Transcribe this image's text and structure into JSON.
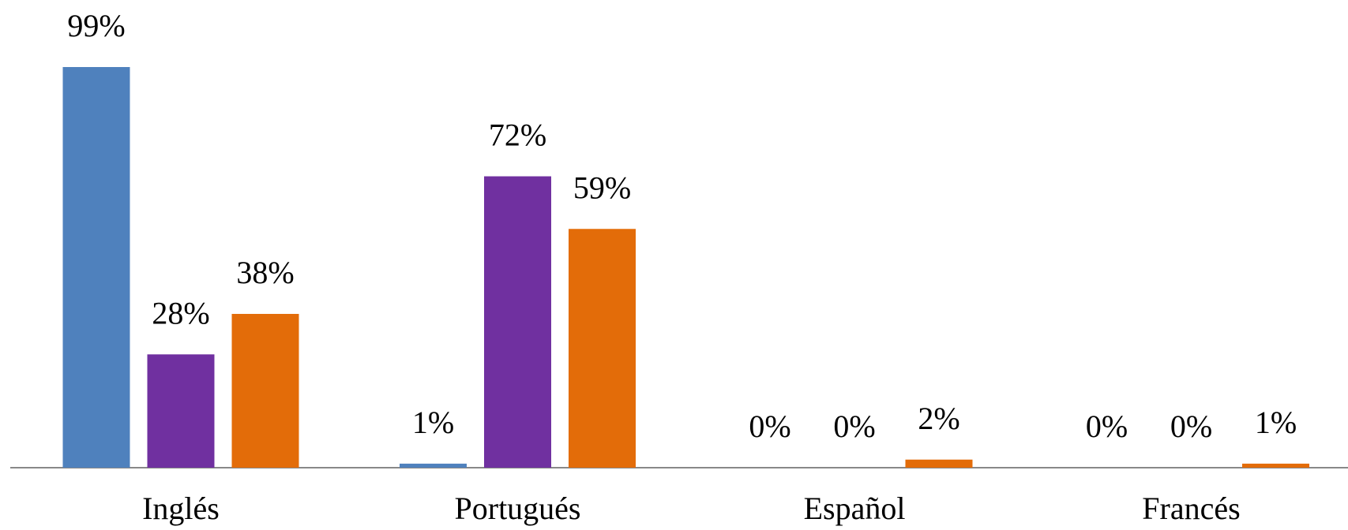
{
  "chart_data": {
    "type": "bar",
    "categories": [
      "Inglés",
      "Portugués",
      "Español",
      "Francés"
    ],
    "series": [
      {
        "color": "#4f81bd",
        "values": [
          99,
          1,
          0,
          0
        ],
        "value_labels": [
          "99%",
          "1%",
          "0%",
          "0%"
        ]
      },
      {
        "color": "#7030a0",
        "values": [
          28,
          72,
          0,
          0
        ],
        "value_labels": [
          "28%",
          "72%",
          "0%",
          "0%"
        ]
      },
      {
        "color": "#e36c09",
        "values": [
          38,
          59,
          2,
          1
        ],
        "value_labels": [
          "38%",
          "59%",
          "2%",
          "1%"
        ]
      }
    ]
  }
}
